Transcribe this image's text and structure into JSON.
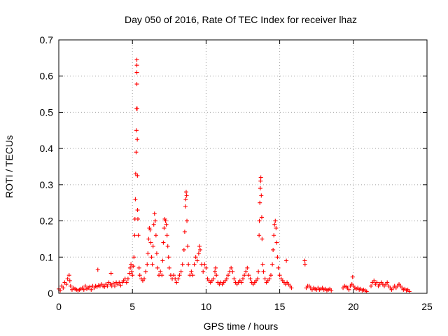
{
  "chart_data": {
    "type": "scatter",
    "title": "Day 050 of 2016, Rate Of TEC Index for receiver lhaz",
    "xlabel": "GPS time / hours",
    "ylabel": "ROTI / TECUs",
    "xlim": [
      0,
      25
    ],
    "ylim": [
      0,
      0.7
    ],
    "xticks": [
      0,
      5,
      10,
      15,
      20,
      25
    ],
    "yticks": [
      0,
      0.1,
      0.2,
      0.3,
      0.4,
      0.5,
      0.6,
      0.7
    ],
    "xtick_labels": [
      "0",
      "5",
      "10",
      "15",
      "20",
      "25"
    ],
    "ytick_labels": [
      "0",
      "0.1",
      "0.2",
      "0.3",
      "0.4",
      "0.5",
      "0.6",
      "0.7"
    ],
    "grid": true,
    "marker": "+",
    "color": "#ff0000",
    "series": [
      {
        "name": "ROTI",
        "points": [
          [
            0.0,
            0.012
          ],
          [
            0.1,
            0.008
          ],
          [
            0.2,
            0.02
          ],
          [
            0.3,
            0.015
          ],
          [
            0.4,
            0.03
          ],
          [
            0.5,
            0.025
          ],
          [
            0.6,
            0.04
          ],
          [
            0.7,
            0.05
          ],
          [
            0.75,
            0.035
          ],
          [
            0.8,
            0.02
          ],
          [
            0.9,
            0.01
          ],
          [
            1.0,
            0.015
          ],
          [
            1.1,
            0.012
          ],
          [
            1.2,
            0.01
          ],
          [
            1.3,
            0.008
          ],
          [
            1.4,
            0.01
          ],
          [
            1.5,
            0.012
          ],
          [
            1.6,
            0.015
          ],
          [
            1.7,
            0.01
          ],
          [
            1.8,
            0.02
          ],
          [
            1.9,
            0.012
          ],
          [
            2.0,
            0.015
          ],
          [
            2.1,
            0.018
          ],
          [
            2.2,
            0.01
          ],
          [
            2.3,
            0.02
          ],
          [
            2.4,
            0.015
          ],
          [
            2.5,
            0.02
          ],
          [
            2.6,
            0.018
          ],
          [
            2.65,
            0.065
          ],
          [
            2.7,
            0.022
          ],
          [
            2.8,
            0.02
          ],
          [
            2.9,
            0.025
          ],
          [
            3.0,
            0.02
          ],
          [
            3.1,
            0.018
          ],
          [
            3.2,
            0.025
          ],
          [
            3.3,
            0.02
          ],
          [
            3.4,
            0.03
          ],
          [
            3.5,
            0.025
          ],
          [
            3.55,
            0.055
          ],
          [
            3.6,
            0.02
          ],
          [
            3.7,
            0.028
          ],
          [
            3.8,
            0.02
          ],
          [
            3.9,
            0.03
          ],
          [
            4.0,
            0.025
          ],
          [
            4.1,
            0.03
          ],
          [
            4.2,
            0.022
          ],
          [
            4.3,
            0.03
          ],
          [
            4.4,
            0.035
          ],
          [
            4.5,
            0.04
          ],
          [
            4.6,
            0.03
          ],
          [
            4.7,
            0.04
          ],
          [
            4.8,
            0.055
          ],
          [
            4.85,
            0.07
          ],
          [
            4.9,
            0.08
          ],
          [
            4.95,
            0.06
          ],
          [
            5.0,
            0.05
          ],
          [
            5.05,
            0.075
          ],
          [
            5.1,
            0.1
          ],
          [
            5.15,
            0.16
          ],
          [
            5.17,
            0.205
          ],
          [
            5.2,
            0.26
          ],
          [
            5.22,
            0.33
          ],
          [
            5.25,
            0.39
          ],
          [
            5.27,
            0.45
          ],
          [
            5.28,
            0.51
          ],
          [
            5.3,
            0.578
          ],
          [
            5.3,
            0.61
          ],
          [
            5.3,
            0.63
          ],
          [
            5.3,
            0.645
          ],
          [
            5.32,
            0.51
          ],
          [
            5.33,
            0.425
          ],
          [
            5.34,
            0.325
          ],
          [
            5.35,
            0.23
          ],
          [
            5.37,
            0.205
          ],
          [
            5.4,
            0.16
          ],
          [
            5.45,
            0.07
          ],
          [
            5.5,
            0.05
          ],
          [
            5.6,
            0.04
          ],
          [
            5.7,
            0.035
          ],
          [
            5.8,
            0.04
          ],
          [
            5.9,
            0.06
          ],
          [
            6.0,
            0.08
          ],
          [
            6.05,
            0.11
          ],
          [
            6.1,
            0.15
          ],
          [
            6.15,
            0.18
          ],
          [
            6.2,
            0.175
          ],
          [
            6.25,
            0.14
          ],
          [
            6.3,
            0.1
          ],
          [
            6.35,
            0.08
          ],
          [
            6.4,
            0.13
          ],
          [
            6.45,
            0.19
          ],
          [
            6.5,
            0.22
          ],
          [
            6.55,
            0.2
          ],
          [
            6.6,
            0.16
          ],
          [
            6.65,
            0.11
          ],
          [
            6.7,
            0.07
          ],
          [
            6.8,
            0.05
          ],
          [
            6.9,
            0.06
          ],
          [
            7.0,
            0.05
          ],
          [
            7.05,
            0.09
          ],
          [
            7.1,
            0.14
          ],
          [
            7.15,
            0.18
          ],
          [
            7.2,
            0.205
          ],
          [
            7.25,
            0.2
          ],
          [
            7.3,
            0.19
          ],
          [
            7.35,
            0.16
          ],
          [
            7.4,
            0.13
          ],
          [
            7.45,
            0.1
          ],
          [
            7.5,
            0.07
          ],
          [
            7.6,
            0.05
          ],
          [
            7.7,
            0.04
          ],
          [
            7.8,
            0.05
          ],
          [
            7.9,
            0.04
          ],
          [
            8.0,
            0.03
          ],
          [
            8.1,
            0.04
          ],
          [
            8.2,
            0.05
          ],
          [
            8.3,
            0.06
          ],
          [
            8.4,
            0.08
          ],
          [
            8.5,
            0.12
          ],
          [
            8.55,
            0.17
          ],
          [
            8.6,
            0.24
          ],
          [
            8.62,
            0.26
          ],
          [
            8.65,
            0.28
          ],
          [
            8.68,
            0.27
          ],
          [
            8.7,
            0.2
          ],
          [
            8.75,
            0.13
          ],
          [
            8.8,
            0.08
          ],
          [
            8.9,
            0.05
          ],
          [
            9.0,
            0.06
          ],
          [
            9.1,
            0.05
          ],
          [
            9.2,
            0.08
          ],
          [
            9.3,
            0.1
          ],
          [
            9.4,
            0.09
          ],
          [
            9.5,
            0.11
          ],
          [
            9.55,
            0.13
          ],
          [
            9.6,
            0.12
          ],
          [
            9.7,
            0.08
          ],
          [
            9.8,
            0.06
          ],
          [
            9.9,
            0.08
          ],
          [
            10.0,
            0.07
          ],
          [
            10.1,
            0.04
          ],
          [
            10.2,
            0.035
          ],
          [
            10.3,
            0.03
          ],
          [
            10.4,
            0.035
          ],
          [
            10.5,
            0.04
          ],
          [
            10.6,
            0.06
          ],
          [
            10.65,
            0.07
          ],
          [
            10.7,
            0.05
          ],
          [
            10.8,
            0.03
          ],
          [
            10.9,
            0.025
          ],
          [
            11.0,
            0.03
          ],
          [
            11.1,
            0.025
          ],
          [
            11.2,
            0.03
          ],
          [
            11.3,
            0.035
          ],
          [
            11.4,
            0.04
          ],
          [
            11.5,
            0.05
          ],
          [
            11.6,
            0.06
          ],
          [
            11.7,
            0.07
          ],
          [
            11.8,
            0.06
          ],
          [
            11.9,
            0.04
          ],
          [
            12.0,
            0.03
          ],
          [
            12.1,
            0.025
          ],
          [
            12.2,
            0.03
          ],
          [
            12.3,
            0.035
          ],
          [
            12.4,
            0.03
          ],
          [
            12.5,
            0.04
          ],
          [
            12.6,
            0.05
          ],
          [
            12.7,
            0.06
          ],
          [
            12.8,
            0.07
          ],
          [
            12.9,
            0.05
          ],
          [
            13.0,
            0.04
          ],
          [
            13.1,
            0.03
          ],
          [
            13.2,
            0.025
          ],
          [
            13.3,
            0.03
          ],
          [
            13.4,
            0.035
          ],
          [
            13.5,
            0.04
          ],
          [
            13.55,
            0.06
          ],
          [
            13.6,
            0.16
          ],
          [
            13.62,
            0.2
          ],
          [
            13.65,
            0.25
          ],
          [
            13.68,
            0.29
          ],
          [
            13.7,
            0.31
          ],
          [
            13.72,
            0.32
          ],
          [
            13.75,
            0.27
          ],
          [
            13.78,
            0.21
          ],
          [
            13.8,
            0.15
          ],
          [
            13.85,
            0.08
          ],
          [
            13.9,
            0.06
          ],
          [
            14.0,
            0.04
          ],
          [
            14.1,
            0.03
          ],
          [
            14.2,
            0.035
          ],
          [
            14.3,
            0.04
          ],
          [
            14.4,
            0.05
          ],
          [
            14.5,
            0.08
          ],
          [
            14.55,
            0.12
          ],
          [
            14.6,
            0.16
          ],
          [
            14.65,
            0.19
          ],
          [
            14.7,
            0.2
          ],
          [
            14.75,
            0.18
          ],
          [
            14.8,
            0.14
          ],
          [
            14.85,
            0.1
          ],
          [
            14.9,
            0.07
          ],
          [
            15.0,
            0.05
          ],
          [
            15.1,
            0.04
          ],
          [
            15.2,
            0.035
          ],
          [
            15.3,
            0.03
          ],
          [
            15.4,
            0.025
          ],
          [
            15.45,
            0.09
          ],
          [
            15.5,
            0.03
          ],
          [
            15.6,
            0.025
          ],
          [
            15.7,
            0.02
          ],
          [
            15.8,
            0.015
          ],
          [
            16.7,
            0.09
          ],
          [
            16.72,
            0.08
          ],
          [
            16.8,
            0.015
          ],
          [
            16.9,
            0.02
          ],
          [
            17.0,
            0.02
          ],
          [
            17.1,
            0.015
          ],
          [
            17.2,
            0.01
          ],
          [
            17.3,
            0.015
          ],
          [
            17.4,
            0.012
          ],
          [
            17.5,
            0.01
          ],
          [
            17.6,
            0.015
          ],
          [
            17.7,
            0.01
          ],
          [
            17.8,
            0.012
          ],
          [
            17.9,
            0.015
          ],
          [
            18.0,
            0.01
          ],
          [
            18.1,
            0.012
          ],
          [
            18.2,
            0.008
          ],
          [
            18.3,
            0.01
          ],
          [
            18.4,
            0.012
          ],
          [
            18.5,
            0.008
          ],
          [
            19.3,
            0.015
          ],
          [
            19.4,
            0.02
          ],
          [
            19.5,
            0.018
          ],
          [
            19.6,
            0.015
          ],
          [
            19.7,
            0.01
          ],
          [
            19.8,
            0.02
          ],
          [
            19.9,
            0.025
          ],
          [
            19.95,
            0.045
          ],
          [
            20.0,
            0.02
          ],
          [
            20.1,
            0.015
          ],
          [
            20.2,
            0.012
          ],
          [
            20.3,
            0.015
          ],
          [
            20.4,
            0.01
          ],
          [
            20.5,
            0.012
          ],
          [
            20.6,
            0.008
          ],
          [
            20.7,
            0.01
          ],
          [
            20.8,
            0.008
          ],
          [
            20.9,
            0.005
          ],
          [
            21.2,
            0.02
          ],
          [
            21.3,
            0.03
          ],
          [
            21.4,
            0.035
          ],
          [
            21.5,
            0.025
          ],
          [
            21.6,
            0.03
          ],
          [
            21.7,
            0.02
          ],
          [
            21.8,
            0.025
          ],
          [
            21.9,
            0.03
          ],
          [
            22.0,
            0.025
          ],
          [
            22.1,
            0.02
          ],
          [
            22.2,
            0.025
          ],
          [
            22.3,
            0.03
          ],
          [
            22.4,
            0.02
          ],
          [
            22.5,
            0.015
          ],
          [
            22.6,
            0.01
          ],
          [
            22.7,
            0.015
          ],
          [
            22.8,
            0.02
          ],
          [
            22.9,
            0.015
          ],
          [
            23.0,
            0.02
          ],
          [
            23.1,
            0.025
          ],
          [
            23.2,
            0.02
          ],
          [
            23.3,
            0.015
          ],
          [
            23.4,
            0.01
          ],
          [
            23.5,
            0.012
          ],
          [
            23.6,
            0.008
          ],
          [
            23.7,
            0.01
          ],
          [
            23.8,
            0.005
          ]
        ]
      }
    ]
  }
}
